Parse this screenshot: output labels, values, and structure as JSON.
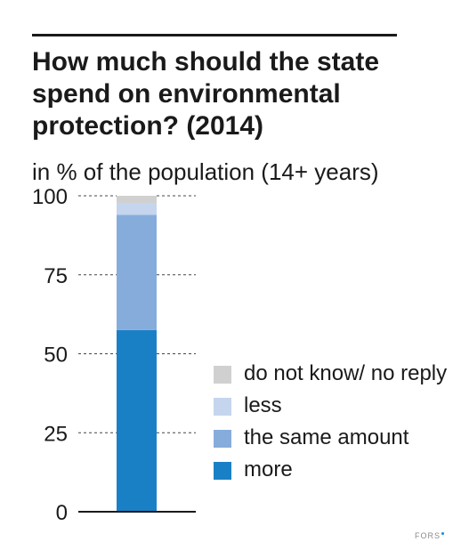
{
  "chart_data": {
    "type": "bar",
    "stacked": true,
    "title": "How much should the state spend on environmental protection? (2014)",
    "subtitle": "in % of the population (14+ years)",
    "categories": [
      ""
    ],
    "ylim": [
      0,
      100
    ],
    "yticks": [
      0,
      25,
      50,
      75,
      100
    ],
    "grid": "dashed",
    "legend_position": "right",
    "series": [
      {
        "name": "more",
        "values": [
          57.5
        ],
        "color": "#1a80c6"
      },
      {
        "name": "the same amount",
        "values": [
          36.5
        ],
        "color": "#86acdc"
      },
      {
        "name": "less",
        "values": [
          3.5
        ],
        "color": "#c5d5ee"
      },
      {
        "name": "do not know/ no reply",
        "values": [
          2.5
        ],
        "color": "#d0d0d0"
      }
    ]
  },
  "legend": {
    "items": [
      {
        "label": "do not know/ no reply",
        "color": "#d0d0d0"
      },
      {
        "label": "less",
        "color": "#c5d5ee"
      },
      {
        "label": "the same amount",
        "color": "#86acdc"
      },
      {
        "label": "more",
        "color": "#1a80c6"
      }
    ]
  },
  "source": "FORS"
}
